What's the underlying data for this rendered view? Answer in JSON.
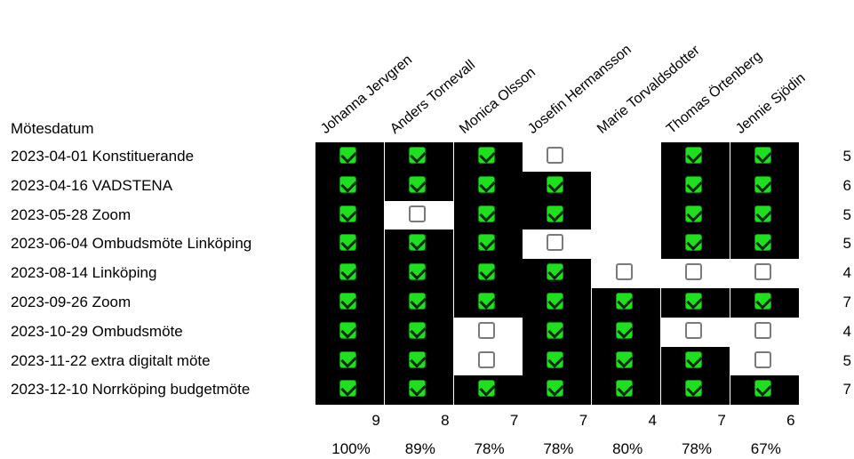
{
  "header_label": "Mötesdatum",
  "members": [
    "Johanna Jervgren",
    "Anders Tornevall",
    "Monica Olsson",
    "Josefin Hermansson",
    "Marie Torvaldsdotter",
    "Thomas Örtenberg",
    "Jennie Sjödin"
  ],
  "meetings": [
    {
      "label": "2023-04-01 Konstituerande",
      "attendance": [
        "on",
        "on",
        "on",
        "off",
        "none",
        "on",
        "on"
      ],
      "count": "5"
    },
    {
      "label": "2023-04-16 VADSTENA",
      "attendance": [
        "on",
        "on",
        "on",
        "on",
        "none",
        "on",
        "on"
      ],
      "count": "6"
    },
    {
      "label": "2023-05-28 Zoom",
      "attendance": [
        "on",
        "off",
        "on",
        "on",
        "none",
        "on",
        "on"
      ],
      "count": "5"
    },
    {
      "label": "2023-06-04  Ombudsmöte Linköping",
      "attendance": [
        "on",
        "on",
        "on",
        "off",
        "none",
        "on",
        "on"
      ],
      "count": "5"
    },
    {
      "label": "2023-08-14 Linköping",
      "attendance": [
        "on",
        "on",
        "on",
        "on",
        "off",
        "off",
        "off"
      ],
      "count": "4"
    },
    {
      "label": "2023-09-26 Zoom",
      "attendance": [
        "on",
        "on",
        "on",
        "on",
        "on",
        "on",
        "on"
      ],
      "count": "7"
    },
    {
      "label": "2023-10-29 Ombudsmöte",
      "attendance": [
        "on",
        "on",
        "off",
        "on",
        "on",
        "off",
        "off"
      ],
      "count": "4"
    },
    {
      "label": "2023-11-22 extra digitalt möte",
      "attendance": [
        "on",
        "on",
        "off",
        "on",
        "on",
        "on",
        "off"
      ],
      "count": "5"
    },
    {
      "label": "2023-12-10 Norrköping budgetmöte",
      "attendance": [
        "on",
        "on",
        "on",
        "on",
        "on",
        "on",
        "on"
      ],
      "count": "7"
    }
  ],
  "totals": [
    "9",
    "8",
    "7",
    "7",
    "4",
    "7",
    "6"
  ],
  "percentages": [
    "100%",
    "89%",
    "78%",
    "78%",
    "80%",
    "78%",
    "67%"
  ]
}
